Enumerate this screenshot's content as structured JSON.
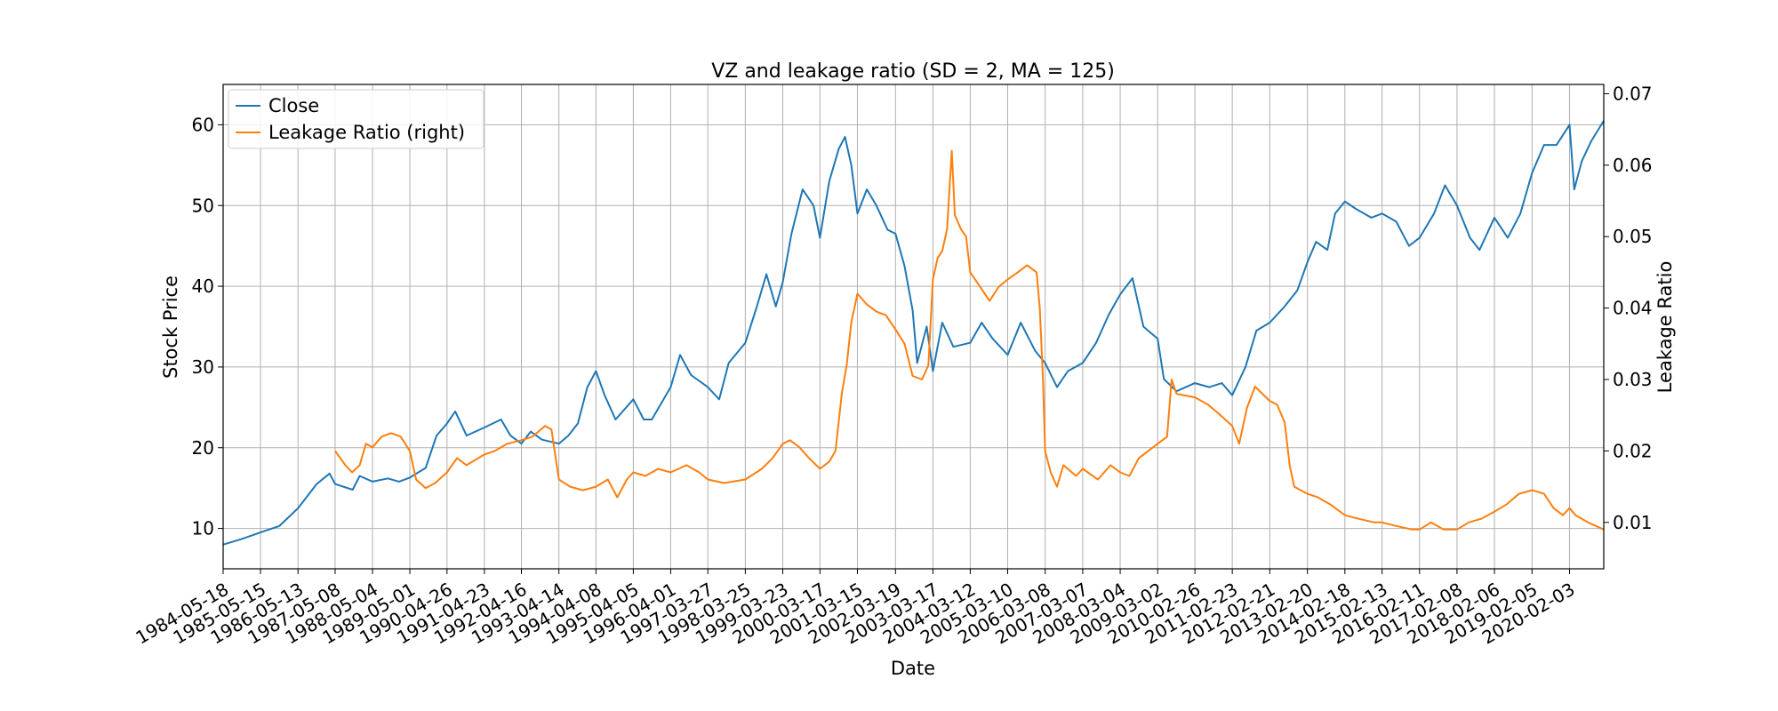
{
  "chart_data": {
    "type": "line",
    "title": "VZ and leakage ratio (SD = 2, MA = 125)",
    "xlabel": "Date",
    "ylabel": "Stock Price",
    "y2label": "Leakage Ratio",
    "x_ticks": [
      "1984-05-18",
      "1985-05-15",
      "1986-05-13",
      "1987-05-08",
      "1988-05-04",
      "1989-05-01",
      "1990-04-26",
      "1991-04-23",
      "1992-04-16",
      "1993-04-14",
      "1994-04-08",
      "1995-04-05",
      "1996-04-01",
      "1997-03-27",
      "1998-03-25",
      "1999-03-23",
      "2000-03-17",
      "2001-03-15",
      "2002-03-19",
      "2003-03-17",
      "2004-03-12",
      "2005-03-10",
      "2006-03-08",
      "2007-03-07",
      "2008-03-04",
      "2009-03-02",
      "2010-02-26",
      "2011-02-23",
      "2012-02-21",
      "2013-02-20",
      "2014-02-18",
      "2015-02-13",
      "2016-02-11",
      "2017-02-08",
      "2018-02-06",
      "2019-02-05",
      "2020-02-03"
    ],
    "x_range": [
      "1984-05-18",
      "2020-12-31"
    ],
    "ylim": [
      5,
      65
    ],
    "y_ticks": [
      10,
      20,
      30,
      40,
      50,
      60
    ],
    "y2lim": [
      0.0035,
      0.0713
    ],
    "y2_ticks": [
      0.01,
      0.02,
      0.03,
      0.04,
      0.05,
      0.06,
      0.07
    ],
    "grid": true,
    "legend_position": "top-left",
    "series": [
      {
        "name": "Close",
        "axis": "left",
        "color": "#1f77b4",
        "points": [
          [
            "1984-05-18",
            8.0
          ],
          [
            "1984-11-15",
            8.7
          ],
          [
            "1985-05-15",
            9.5
          ],
          [
            "1985-11-13",
            10.3
          ],
          [
            "1986-05-13",
            12.5
          ],
          [
            "1986-11-10",
            15.5
          ],
          [
            "1987-03-15",
            16.8
          ],
          [
            "1987-05-08",
            15.5
          ],
          [
            "1987-10-25",
            14.8
          ],
          [
            "1988-01-01",
            16.5
          ],
          [
            "1988-05-04",
            15.8
          ],
          [
            "1988-10-01",
            16.2
          ],
          [
            "1989-01-15",
            15.8
          ],
          [
            "1989-05-01",
            16.3
          ],
          [
            "1989-10-01",
            17.5
          ],
          [
            "1990-01-15",
            21.5
          ],
          [
            "1990-04-26",
            23.0
          ],
          [
            "1990-07-15",
            24.5
          ],
          [
            "1990-11-01",
            21.5
          ],
          [
            "1991-04-23",
            22.5
          ],
          [
            "1991-10-01",
            23.5
          ],
          [
            "1992-01-01",
            21.5
          ],
          [
            "1992-04-16",
            20.5
          ],
          [
            "1992-07-15",
            22.0
          ],
          [
            "1992-11-01",
            21.0
          ],
          [
            "1993-04-14",
            20.5
          ],
          [
            "1993-07-15",
            21.5
          ],
          [
            "1993-10-15",
            23.0
          ],
          [
            "1994-01-15",
            27.5
          ],
          [
            "1994-04-08",
            29.5
          ],
          [
            "1994-07-01",
            26.5
          ],
          [
            "1994-10-15",
            23.5
          ],
          [
            "1995-04-05",
            26.0
          ],
          [
            "1995-07-15",
            23.5
          ],
          [
            "1995-10-01",
            23.5
          ],
          [
            "1996-04-01",
            27.5
          ],
          [
            "1996-07-01",
            31.5
          ],
          [
            "1996-10-15",
            29.0
          ],
          [
            "1997-03-27",
            27.5
          ],
          [
            "1997-07-15",
            26.0
          ],
          [
            "1997-10-15",
            30.5
          ],
          [
            "1998-03-25",
            33.0
          ],
          [
            "1998-07-15",
            37.5
          ],
          [
            "1998-10-15",
            41.5
          ],
          [
            "1999-01-15",
            37.5
          ],
          [
            "1999-03-23",
            40.5
          ],
          [
            "1999-06-15",
            46.5
          ],
          [
            "1999-10-01",
            52.0
          ],
          [
            "2000-01-15",
            50.0
          ],
          [
            "2000-03-17",
            46.0
          ],
          [
            "2000-06-15",
            53.0
          ],
          [
            "2000-09-15",
            57.0
          ],
          [
            "2000-11-15",
            58.5
          ],
          [
            "2001-01-15",
            55.0
          ],
          [
            "2001-03-15",
            49.0
          ],
          [
            "2001-06-15",
            52.0
          ],
          [
            "2001-09-15",
            50.0
          ],
          [
            "2002-01-01",
            47.0
          ],
          [
            "2002-03-19",
            46.5
          ],
          [
            "2002-06-15",
            42.5
          ],
          [
            "2002-09-01",
            37.0
          ],
          [
            "2002-10-15",
            30.5
          ],
          [
            "2003-01-15",
            35.0
          ],
          [
            "2003-03-17",
            29.5
          ],
          [
            "2003-06-15",
            35.5
          ],
          [
            "2003-10-01",
            32.5
          ],
          [
            "2004-03-12",
            33.0
          ],
          [
            "2004-07-01",
            35.5
          ],
          [
            "2004-10-15",
            33.5
          ],
          [
            "2005-03-10",
            31.5
          ],
          [
            "2005-07-15",
            35.5
          ],
          [
            "2005-12-01",
            32.0
          ],
          [
            "2006-03-08",
            30.5
          ],
          [
            "2006-07-01",
            27.5
          ],
          [
            "2006-10-15",
            29.5
          ],
          [
            "2007-03-07",
            30.5
          ],
          [
            "2007-07-15",
            33.0
          ],
          [
            "2007-11-15",
            36.5
          ],
          [
            "2008-03-04",
            39.0
          ],
          [
            "2008-07-01",
            41.0
          ],
          [
            "2008-10-15",
            35.0
          ],
          [
            "2009-03-02",
            33.5
          ],
          [
            "2009-05-01",
            28.5
          ],
          [
            "2009-09-01",
            27.0
          ],
          [
            "2010-02-26",
            28.0
          ],
          [
            "2010-07-15",
            27.5
          ],
          [
            "2010-11-15",
            28.0
          ],
          [
            "2011-02-23",
            26.5
          ],
          [
            "2011-07-01",
            30.0
          ],
          [
            "2011-10-15",
            34.5
          ],
          [
            "2012-02-21",
            35.5
          ],
          [
            "2012-07-15",
            37.5
          ],
          [
            "2012-11-15",
            39.5
          ],
          [
            "2013-02-20",
            43.0
          ],
          [
            "2013-05-15",
            45.5
          ],
          [
            "2013-09-01",
            44.5
          ],
          [
            "2013-11-15",
            49.0
          ],
          [
            "2014-02-18",
            50.5
          ],
          [
            "2014-06-15",
            49.5
          ],
          [
            "2014-11-01",
            48.5
          ],
          [
            "2015-02-13",
            49.0
          ],
          [
            "2015-07-01",
            48.0
          ],
          [
            "2015-11-01",
            45.0
          ],
          [
            "2016-02-11",
            46.0
          ],
          [
            "2016-07-01",
            49.0
          ],
          [
            "2016-10-15",
            52.5
          ],
          [
            "2017-02-08",
            50.0
          ],
          [
            "2017-06-15",
            46.0
          ],
          [
            "2017-09-15",
            44.5
          ],
          [
            "2018-02-06",
            48.5
          ],
          [
            "2018-06-15",
            46.0
          ],
          [
            "2018-10-15",
            49.0
          ],
          [
            "2019-02-05",
            54.0
          ],
          [
            "2019-06-01",
            57.5
          ],
          [
            "2019-10-01",
            57.5
          ],
          [
            "2020-02-03",
            60.0
          ],
          [
            "2020-03-20",
            52.0
          ],
          [
            "2020-06-01",
            55.5
          ],
          [
            "2020-09-01",
            58.0
          ],
          [
            "2020-12-31",
            60.5
          ]
        ]
      },
      {
        "name": "Leakage Ratio (right)",
        "axis": "right",
        "color": "#ff7f0e",
        "points": [
          [
            "1987-05-08",
            0.02
          ],
          [
            "1987-08-15",
            0.018
          ],
          [
            "1987-10-20",
            0.017
          ],
          [
            "1988-01-01",
            0.018
          ],
          [
            "1988-03-01",
            0.021
          ],
          [
            "1988-05-04",
            0.0205
          ],
          [
            "1988-08-01",
            0.022
          ],
          [
            "1988-11-01",
            0.0225
          ],
          [
            "1989-02-01",
            0.022
          ],
          [
            "1989-05-01",
            0.02
          ],
          [
            "1989-07-01",
            0.016
          ],
          [
            "1989-10-01",
            0.0148
          ],
          [
            "1990-01-01",
            0.0155
          ],
          [
            "1990-04-26",
            0.017
          ],
          [
            "1990-08-01",
            0.019
          ],
          [
            "1990-11-01",
            0.018
          ],
          [
            "1991-04-23",
            0.0195
          ],
          [
            "1991-08-01",
            0.02
          ],
          [
            "1991-12-01",
            0.021
          ],
          [
            "1992-04-16",
            0.0215
          ],
          [
            "1992-08-01",
            0.022
          ],
          [
            "1992-12-01",
            0.0235
          ],
          [
            "1993-02-01",
            0.023
          ],
          [
            "1993-04-14",
            0.016
          ],
          [
            "1993-08-01",
            0.015
          ],
          [
            "1993-12-01",
            0.0145
          ],
          [
            "1994-04-08",
            0.015
          ],
          [
            "1994-08-01",
            0.016
          ],
          [
            "1994-11-01",
            0.0135
          ],
          [
            "1995-02-01",
            0.016
          ],
          [
            "1995-04-05",
            0.017
          ],
          [
            "1995-08-01",
            0.0165
          ],
          [
            "1995-12-01",
            0.0175
          ],
          [
            "1996-04-01",
            0.017
          ],
          [
            "1996-09-01",
            0.018
          ],
          [
            "1997-01-01",
            0.017
          ],
          [
            "1997-03-27",
            0.016
          ],
          [
            "1997-09-01",
            0.0155
          ],
          [
            "1998-03-25",
            0.016
          ],
          [
            "1998-09-01",
            0.0175
          ],
          [
            "1998-12-15",
            0.019
          ],
          [
            "1999-03-23",
            0.021
          ],
          [
            "1999-06-01",
            0.0215
          ],
          [
            "1999-09-01",
            0.0205
          ],
          [
            "1999-12-01",
            0.019
          ],
          [
            "2000-03-17",
            0.0175
          ],
          [
            "2000-06-15",
            0.0185
          ],
          [
            "2000-08-15",
            0.02
          ],
          [
            "2000-10-15",
            0.028
          ],
          [
            "2000-12-01",
            0.032
          ],
          [
            "2001-01-15",
            0.038
          ],
          [
            "2001-03-15",
            0.042
          ],
          [
            "2001-06-15",
            0.0405
          ],
          [
            "2001-09-15",
            0.0395
          ],
          [
            "2001-12-15",
            0.039
          ],
          [
            "2002-03-19",
            0.037
          ],
          [
            "2002-06-15",
            0.035
          ],
          [
            "2002-09-01",
            0.0305
          ],
          [
            "2002-12-01",
            0.03
          ],
          [
            "2003-02-01",
            0.032
          ],
          [
            "2003-03-17",
            0.044
          ],
          [
            "2003-05-01",
            0.047
          ],
          [
            "2003-06-15",
            0.048
          ],
          [
            "2003-08-01",
            0.051
          ],
          [
            "2003-09-15",
            0.062
          ],
          [
            "2003-10-15",
            0.053
          ],
          [
            "2003-12-15",
            0.051
          ],
          [
            "2004-02-01",
            0.05
          ],
          [
            "2004-03-12",
            0.045
          ],
          [
            "2004-06-15",
            0.043
          ],
          [
            "2004-09-15",
            0.041
          ],
          [
            "2004-12-15",
            0.043
          ],
          [
            "2005-03-10",
            0.044
          ],
          [
            "2005-06-15",
            0.045
          ],
          [
            "2005-09-15",
            0.046
          ],
          [
            "2005-12-15",
            0.045
          ],
          [
            "2006-01-15",
            0.04
          ],
          [
            "2006-02-15",
            0.03
          ],
          [
            "2006-03-08",
            0.02
          ],
          [
            "2006-05-01",
            0.017
          ],
          [
            "2006-07-01",
            0.015
          ],
          [
            "2006-09-01",
            0.018
          ],
          [
            "2007-01-01",
            0.0165
          ],
          [
            "2007-03-07",
            0.0175
          ],
          [
            "2007-08-01",
            0.016
          ],
          [
            "2007-12-01",
            0.018
          ],
          [
            "2008-03-04",
            0.017
          ],
          [
            "2008-06-01",
            0.0165
          ],
          [
            "2008-09-01",
            0.019
          ],
          [
            "2008-12-01",
            0.02
          ],
          [
            "2009-03-02",
            0.021
          ],
          [
            "2009-06-01",
            0.022
          ],
          [
            "2009-07-15",
            0.03
          ],
          [
            "2009-09-01",
            0.028
          ],
          [
            "2010-02-26",
            0.0275
          ],
          [
            "2010-07-01",
            0.0265
          ],
          [
            "2010-11-01",
            0.025
          ],
          [
            "2011-02-23",
            0.0235
          ],
          [
            "2011-05-01",
            0.021
          ],
          [
            "2011-07-15",
            0.026
          ],
          [
            "2011-10-01",
            0.029
          ],
          [
            "2012-02-21",
            0.027
          ],
          [
            "2012-05-01",
            0.0265
          ],
          [
            "2012-07-15",
            0.024
          ],
          [
            "2012-09-01",
            0.018
          ],
          [
            "2012-10-15",
            0.015
          ],
          [
            "2013-02-20",
            0.014
          ],
          [
            "2013-06-01",
            0.0135
          ],
          [
            "2013-10-01",
            0.0125
          ],
          [
            "2014-02-18",
            0.011
          ],
          [
            "2014-07-01",
            0.0105
          ],
          [
            "2014-12-01",
            0.01
          ],
          [
            "2015-02-13",
            0.01
          ],
          [
            "2015-07-01",
            0.0095
          ],
          [
            "2015-12-01",
            0.009
          ],
          [
            "2016-02-11",
            0.009
          ],
          [
            "2016-06-01",
            0.01
          ],
          [
            "2016-10-01",
            0.009
          ],
          [
            "2017-02-08",
            0.009
          ],
          [
            "2017-06-01",
            0.01
          ],
          [
            "2017-10-01",
            0.0105
          ],
          [
            "2018-02-06",
            0.0115
          ],
          [
            "2018-06-01",
            0.0125
          ],
          [
            "2018-10-01",
            0.014
          ],
          [
            "2019-02-05",
            0.0145
          ],
          [
            "2019-06-01",
            0.014
          ],
          [
            "2019-09-01",
            0.012
          ],
          [
            "2019-12-01",
            0.011
          ],
          [
            "2020-02-03",
            0.012
          ],
          [
            "2020-04-01",
            0.011
          ],
          [
            "2020-08-01",
            0.01
          ],
          [
            "2020-12-31",
            0.009
          ]
        ]
      }
    ]
  }
}
